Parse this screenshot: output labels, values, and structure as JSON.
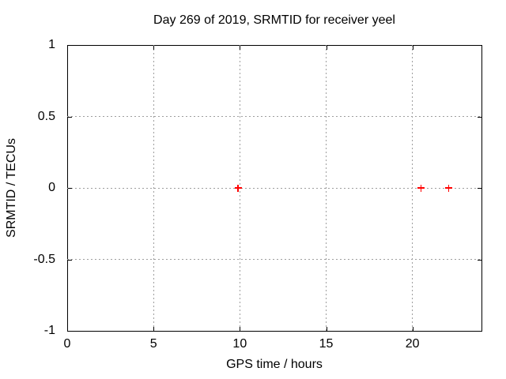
{
  "colors": {
    "background": "#ffffff",
    "axis": "#000000",
    "grid": "#9e9e9e",
    "marker": "#ff0000"
  },
  "chart_data": {
    "type": "scatter",
    "title": "Day 269 of 2019, SRMTID for receiver yeel",
    "xlabel": "GPS time / hours",
    "ylabel": "SRMTID / TECUs",
    "xlim": [
      0,
      24
    ],
    "ylim": [
      -1,
      1
    ],
    "xticks": [
      {
        "value": 0,
        "label": "0"
      },
      {
        "value": 5,
        "label": "5"
      },
      {
        "value": 10,
        "label": "10"
      },
      {
        "value": 15,
        "label": "15"
      },
      {
        "value": 20,
        "label": "20"
      }
    ],
    "yticks": [
      {
        "value": 1,
        "label": "1"
      },
      {
        "value": 0.5,
        "label": "0.5"
      },
      {
        "value": 0,
        "label": "0"
      },
      {
        "value": -0.5,
        "label": "-0.5"
      },
      {
        "value": -1,
        "label": "-1"
      }
    ],
    "grid_x": [
      5,
      10,
      15,
      20
    ],
    "grid_y": [
      0.5,
      0,
      -0.5
    ],
    "grid": true,
    "grid_style": "dashed",
    "legend": "none",
    "marker": "plus",
    "series": [
      {
        "name": "SRMTID",
        "color": "#ff0000",
        "points": [
          [
            9.9,
            0.0
          ],
          [
            20.5,
            0.0
          ],
          [
            22.1,
            0.0
          ]
        ]
      }
    ]
  }
}
